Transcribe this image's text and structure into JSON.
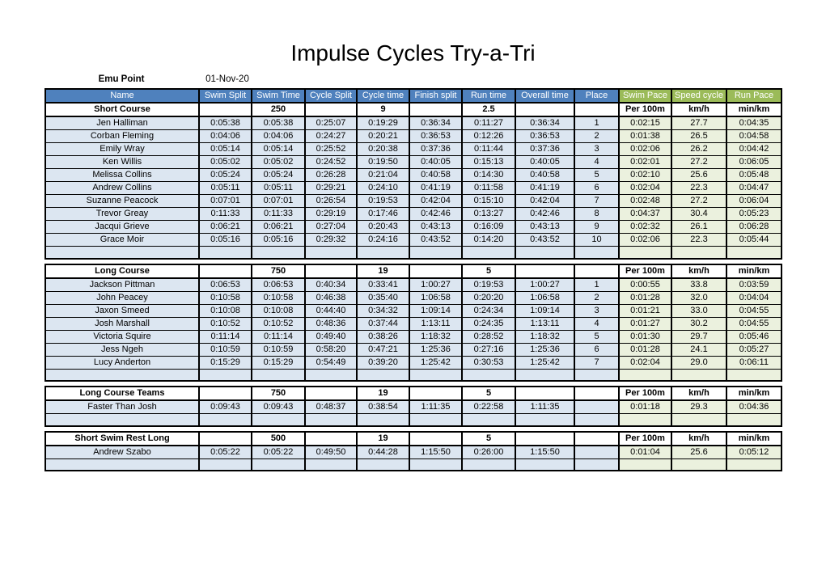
{
  "title": "Impulse Cycles Try-a-Tri",
  "event": {
    "location": "Emu Point",
    "date": "01-Nov-20"
  },
  "colors": {
    "header_blue": "#4F81BD",
    "header_green": "#9BBB59",
    "row_blue": "#DCE6F1",
    "row_green": "#EBF1DE",
    "border": "#000000"
  },
  "columns": [
    "Name",
    "Swim Split",
    "Swim Time",
    "Cycle Split",
    "Cycle time",
    "Finish split",
    "Run time",
    "Overall time",
    "Place",
    "Swim Pace",
    "Speed cycle",
    "Run Pace"
  ],
  "sections": [
    {
      "id": "short-course",
      "label": "Short Course",
      "header_cells": [
        "Short Course",
        "",
        "250",
        "",
        "9",
        "",
        "2.5",
        "",
        "",
        "Per 100m",
        "km/h",
        "min/km"
      ],
      "rows": [
        [
          "Jen Halliman",
          "0:05:38",
          "0:05:38",
          "0:25:07",
          "0:19:29",
          "0:36:34",
          "0:11:27",
          "0:36:34",
          "1",
          "0:02:15",
          "27.7",
          "0:04:35"
        ],
        [
          "Corban Fleming",
          "0:04:06",
          "0:04:06",
          "0:24:27",
          "0:20:21",
          "0:36:53",
          "0:12:26",
          "0:36:53",
          "2",
          "0:01:38",
          "26.5",
          "0:04:58"
        ],
        [
          "Emily Wray",
          "0:05:14",
          "0:05:14",
          "0:25:52",
          "0:20:38",
          "0:37:36",
          "0:11:44",
          "0:37:36",
          "3",
          "0:02:06",
          "26.2",
          "0:04:42"
        ],
        [
          "Ken Willis",
          "0:05:02",
          "0:05:02",
          "0:24:52",
          "0:19:50",
          "0:40:05",
          "0:15:13",
          "0:40:05",
          "4",
          "0:02:01",
          "27.2",
          "0:06:05"
        ],
        [
          "Melissa Collins",
          "0:05:24",
          "0:05:24",
          "0:26:28",
          "0:21:04",
          "0:40:58",
          "0:14:30",
          "0:40:58",
          "5",
          "0:02:10",
          "25.6",
          "0:05:48"
        ],
        [
          "Andrew Collins",
          "0:05:11",
          "0:05:11",
          "0:29:21",
          "0:24:10",
          "0:41:19",
          "0:11:58",
          "0:41:19",
          "6",
          "0:02:04",
          "22.3",
          "0:04:47"
        ],
        [
          "Suzanne Peacock",
          "0:07:01",
          "0:07:01",
          "0:26:54",
          "0:19:53",
          "0:42:04",
          "0:15:10",
          "0:42:04",
          "7",
          "0:02:48",
          "27.2",
          "0:06:04"
        ],
        [
          "Trevor Greay",
          "0:11:33",
          "0:11:33",
          "0:29:19",
          "0:17:46",
          "0:42:46",
          "0:13:27",
          "0:42:46",
          "8",
          "0:04:37",
          "30.4",
          "0:05:23"
        ],
        [
          "Jacqui Grieve",
          "0:06:21",
          "0:06:21",
          "0:27:04",
          "0:20:43",
          "0:43:13",
          "0:16:09",
          "0:43:13",
          "9",
          "0:02:32",
          "26.1",
          "0:06:28"
        ],
        [
          "Grace Moir",
          "0:05:16",
          "0:05:16",
          "0:29:32",
          "0:24:16",
          "0:43:52",
          "0:14:20",
          "0:43:52",
          "10",
          "0:02:06",
          "22.3",
          "0:05:44"
        ]
      ]
    },
    {
      "id": "long-course",
      "label": "Long Course",
      "header_cells": [
        "Long Course",
        "",
        "750",
        "",
        "19",
        "",
        "5",
        "",
        "",
        "Per 100m",
        "km/h",
        "min/km"
      ],
      "rows": [
        [
          "Jackson Pittman",
          "0:06:53",
          "0:06:53",
          "0:40:34",
          "0:33:41",
          "1:00:27",
          "0:19:53",
          "1:00:27",
          "1",
          "0:00:55",
          "33.8",
          "0:03:59"
        ],
        [
          "John Peacey",
          "0:10:58",
          "0:10:58",
          "0:46:38",
          "0:35:40",
          "1:06:58",
          "0:20:20",
          "1:06:58",
          "2",
          "0:01:28",
          "32.0",
          "0:04:04"
        ],
        [
          "Jaxon Smeed",
          "0:10:08",
          "0:10:08",
          "0:44:40",
          "0:34:32",
          "1:09:14",
          "0:24:34",
          "1:09:14",
          "3",
          "0:01:21",
          "33.0",
          "0:04:55"
        ],
        [
          "Josh Marshall",
          "0:10:52",
          "0:10:52",
          "0:48:36",
          "0:37:44",
          "1:13:11",
          "0:24:35",
          "1:13:11",
          "4",
          "0:01:27",
          "30.2",
          "0:04:55"
        ],
        [
          "Victoria Squire",
          "0:11:14",
          "0:11:14",
          "0:49:40",
          "0:38:26",
          "1:18:32",
          "0:28:52",
          "1:18:32",
          "5",
          "0:01:30",
          "29.7",
          "0:05:46"
        ],
        [
          "Jess Ngeh",
          "0:10:59",
          "0:10:59",
          "0:58:20",
          "0:47:21",
          "1:25:36",
          "0:27:16",
          "1:25:36",
          "6",
          "0:01:28",
          "24.1",
          "0:05:27"
        ],
        [
          "Lucy Anderton",
          "0:15:29",
          "0:15:29",
          "0:54:49",
          "0:39:20",
          "1:25:42",
          "0:30:53",
          "1:25:42",
          "7",
          "0:02:04",
          "29.0",
          "0:06:11"
        ]
      ]
    },
    {
      "id": "long-course-teams",
      "label": "Long Course Teams",
      "header_cells": [
        "Long Course Teams",
        "",
        "750",
        "",
        "19",
        "",
        "5",
        "",
        "",
        "Per 100m",
        "km/h",
        "min/km"
      ],
      "rows": [
        [
          "Faster Than Josh",
          "0:09:43",
          "0:09:43",
          "0:48:37",
          "0:38:54",
          "1:11:35",
          "0:22:58",
          "1:11:35",
          "",
          "0:01:18",
          "29.3",
          "0:04:36"
        ]
      ]
    },
    {
      "id": "short-swim-rest-long",
      "label": "Short Swim Rest Long",
      "header_cells": [
        "Short Swim Rest Long",
        "",
        "500",
        "",
        "19",
        "",
        "5",
        "",
        "",
        "Per 100m",
        "km/h",
        "min/km"
      ],
      "rows": [
        [
          "Andrew Szabo",
          "0:05:22",
          "0:05:22",
          "0:49:50",
          "0:44:28",
          "1:15:50",
          "0:26:00",
          "1:15:50",
          "",
          "0:01:04",
          "25.6",
          "0:05:12"
        ]
      ]
    }
  ]
}
